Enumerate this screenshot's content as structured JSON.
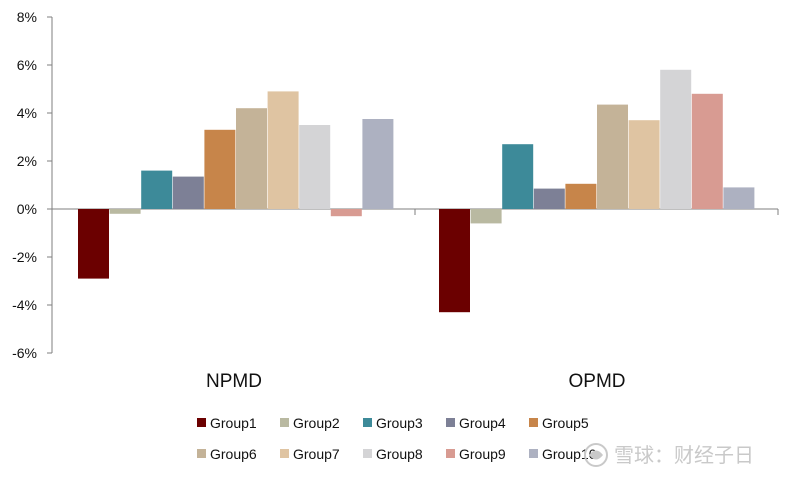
{
  "chart_data": {
    "type": "bar",
    "categories": [
      "NPMD",
      "OPMD"
    ],
    "series": [
      {
        "name": "Group1",
        "color": "#6b0000",
        "values": [
          -2.9,
          -4.3
        ]
      },
      {
        "name": "Group2",
        "color": "#b9b9a1",
        "values": [
          -0.2,
          -0.6
        ]
      },
      {
        "name": "Group3",
        "color": "#3d8a99",
        "values": [
          1.6,
          2.7
        ]
      },
      {
        "name": "Group4",
        "color": "#7d8096",
        "values": [
          1.35,
          0.85
        ]
      },
      {
        "name": "Group5",
        "color": "#c7854a",
        "values": [
          3.3,
          1.05
        ]
      },
      {
        "name": "Group6",
        "color": "#c4b398",
        "values": [
          4.2,
          4.35
        ]
      },
      {
        "name": "Group7",
        "color": "#dfc4a2",
        "values": [
          4.9,
          3.7
        ]
      },
      {
        "name": "Group8",
        "color": "#d4d4d6",
        "values": [
          3.5,
          5.8
        ]
      },
      {
        "name": "Group9",
        "color": "#d89b92",
        "values": [
          -0.3,
          4.8
        ]
      },
      {
        "name": "Group10",
        "color": "#adb1c1",
        "values": [
          3.75,
          0.9
        ]
      }
    ],
    "ylim": [
      -6,
      8
    ],
    "yticks": [
      "-6%",
      "-4%",
      "-2%",
      "0%",
      "2%",
      "4%",
      "6%",
      "8%"
    ],
    "legend_position": "bottom",
    "grid": false
  },
  "watermark": {
    "text": "雪球：财经子日"
  }
}
